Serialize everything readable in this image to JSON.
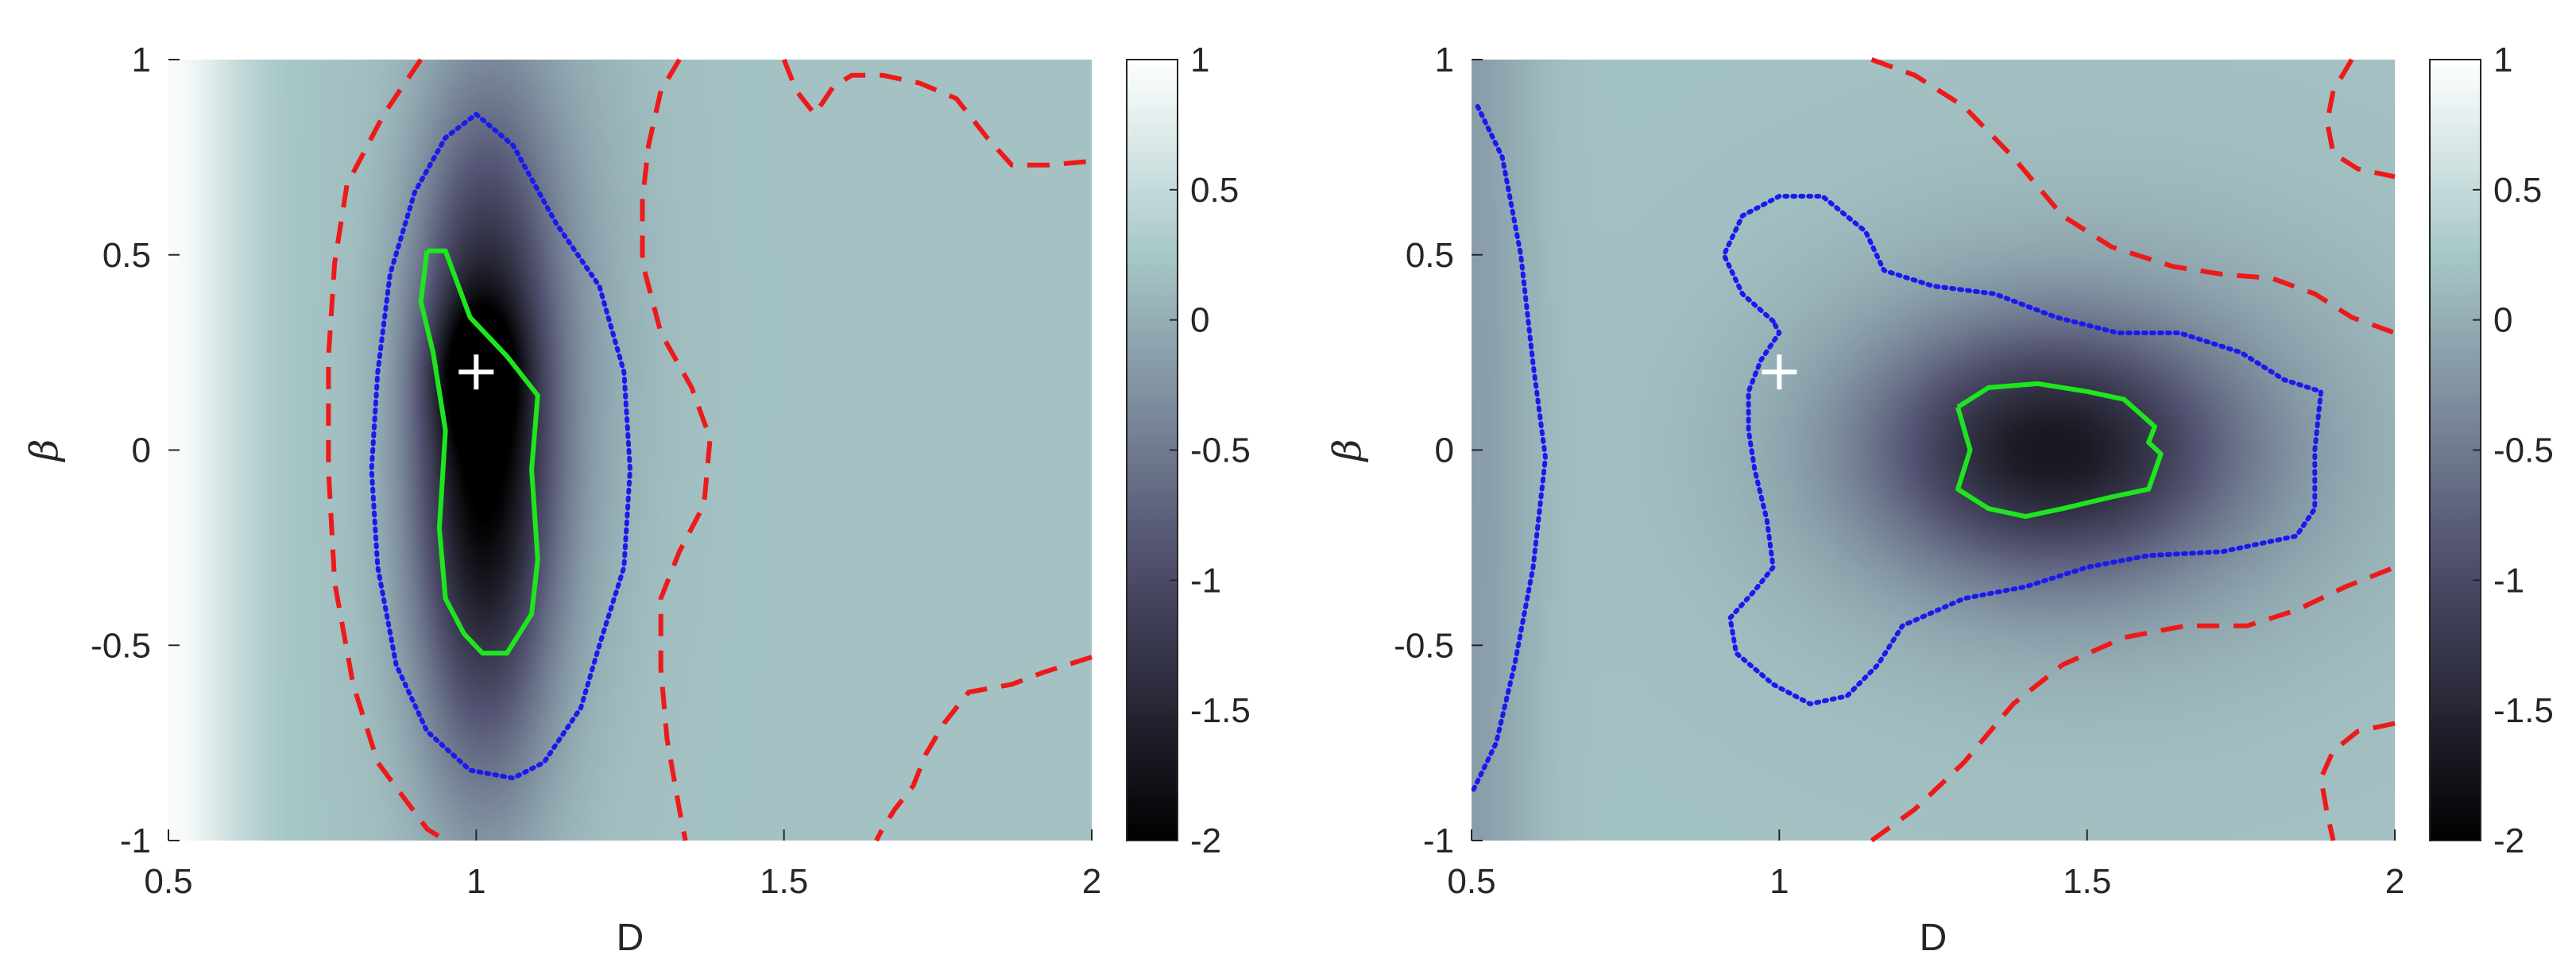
{
  "chart_data": [
    {
      "type": "heatmap",
      "xlabel": "D",
      "ylabel": "β",
      "xlim": [
        0.5,
        2
      ],
      "ylim": [
        -1,
        1
      ],
      "xticks": [
        "0.5",
        "1",
        "1.5",
        "2"
      ],
      "yticks": [
        "-1",
        "-0.5",
        "0",
        "0.5",
        "1"
      ],
      "colorbar": {
        "range": [
          -2,
          1
        ],
        "ticks": [
          "-2",
          "-1.5",
          "-1",
          "-0.5",
          "0",
          "0.5",
          "1"
        ],
        "colormap": "bone"
      },
      "marker": {
        "symbol": "+",
        "x": 1.0,
        "y": 0.2,
        "color": "#ffffff"
      },
      "wells": [
        {
          "x": 1.01,
          "y": 0.0,
          "sx": 0.08,
          "sy": 0.55,
          "depth": -2.1
        },
        {
          "x": 1.0,
          "y": 0.2,
          "sx": 0.05,
          "sy": 0.12,
          "depth": -0.8
        },
        {
          "x": 1.1,
          "y": 0.3,
          "sx": 0.12,
          "sy": 0.7,
          "depth": -0.3
        }
      ],
      "background": {
        "left_value": 0.95,
        "right_value": 0.2,
        "edge_x": 0.62
      },
      "contours": [
        {
          "style": "solid",
          "color": "#1ee61e",
          "points": [
            [
              0.92,
              0.51
            ],
            [
              0.95,
              0.51
            ],
            [
              0.99,
              0.34
            ],
            [
              1.05,
              0.24
            ],
            [
              1.1,
              0.14
            ],
            [
              1.09,
              -0.05
            ],
            [
              1.1,
              -0.28
            ],
            [
              1.09,
              -0.42
            ],
            [
              1.05,
              -0.52
            ],
            [
              1.01,
              -0.52
            ],
            [
              0.98,
              -0.47
            ],
            [
              0.95,
              -0.38
            ],
            [
              0.94,
              -0.2
            ],
            [
              0.95,
              0.05
            ],
            [
              0.93,
              0.25
            ],
            [
              0.91,
              0.38
            ],
            [
              0.92,
              0.51
            ]
          ]
        },
        {
          "style": "dotted",
          "color": "#1a1aee",
          "points": [
            [
              1.0,
              0.86
            ],
            [
              1.06,
              0.78
            ],
            [
              1.13,
              0.58
            ],
            [
              1.2,
              0.42
            ],
            [
              1.24,
              0.2
            ],
            [
              1.25,
              -0.05
            ],
            [
              1.24,
              -0.3
            ],
            [
              1.2,
              -0.5
            ],
            [
              1.17,
              -0.66
            ],
            [
              1.11,
              -0.8
            ],
            [
              1.06,
              -0.84
            ],
            [
              0.99,
              -0.82
            ],
            [
              0.92,
              -0.72
            ],
            [
              0.87,
              -0.55
            ],
            [
              0.84,
              -0.3
            ],
            [
              0.83,
              -0.05
            ],
            [
              0.84,
              0.2
            ],
            [
              0.86,
              0.45
            ],
            [
              0.9,
              0.66
            ],
            [
              0.95,
              0.8
            ],
            [
              1.0,
              0.86
            ]
          ]
        },
        {
          "style": "dashed",
          "color": "#ee1a1a",
          "points": [
            [
              0.91,
              1.0
            ],
            [
              0.85,
              0.86
            ],
            [
              0.79,
              0.68
            ],
            [
              0.77,
              0.48
            ],
            [
              0.76,
              0.24
            ],
            [
              0.76,
              -0.05
            ],
            [
              0.77,
              -0.34
            ],
            [
              0.8,
              -0.6
            ],
            [
              0.84,
              -0.8
            ],
            [
              0.92,
              -0.97
            ],
            [
              0.95,
              -1.0
            ]
          ]
        },
        {
          "style": "dashed",
          "color": "#ee1a1a",
          "points": [
            [
              1.33,
              1.0
            ],
            [
              1.3,
              0.92
            ],
            [
              1.28,
              0.78
            ],
            [
              1.27,
              0.64
            ],
            [
              1.27,
              0.48
            ],
            [
              1.3,
              0.3
            ],
            [
              1.35,
              0.16
            ],
            [
              1.38,
              0.03
            ],
            [
              1.37,
              -0.14
            ],
            [
              1.33,
              -0.26
            ],
            [
              1.3,
              -0.38
            ],
            [
              1.3,
              -0.56
            ],
            [
              1.31,
              -0.74
            ],
            [
              1.33,
              -0.92
            ],
            [
              1.34,
              -1.0
            ]
          ]
        },
        {
          "style": "dashed",
          "color": "#ee1a1a",
          "points": [
            [
              1.5,
              1.0
            ],
            [
              1.52,
              0.92
            ],
            [
              1.55,
              0.86
            ],
            [
              1.58,
              0.93
            ],
            [
              1.61,
              0.96
            ],
            [
              1.66,
              0.96
            ],
            [
              1.72,
              0.94
            ],
            [
              1.78,
              0.9
            ],
            [
              1.83,
              0.8
            ],
            [
              1.87,
              0.73
            ],
            [
              1.93,
              0.73
            ],
            [
              2.0,
              0.74
            ]
          ]
        },
        {
          "style": "dashed",
          "color": "#ee1a1a",
          "points": [
            [
              2.0,
              -0.53
            ],
            [
              1.92,
              -0.57
            ],
            [
              1.87,
              -0.6
            ],
            [
              1.8,
              -0.62
            ],
            [
              1.76,
              -0.7
            ],
            [
              1.73,
              -0.78
            ],
            [
              1.71,
              -0.86
            ],
            [
              1.68,
              -0.92
            ],
            [
              1.66,
              -0.97
            ],
            [
              1.65,
              -1.0
            ]
          ]
        }
      ]
    },
    {
      "type": "heatmap",
      "xlabel": "D",
      "ylabel": "β",
      "xlim": [
        0.5,
        2
      ],
      "ylim": [
        -1,
        1
      ],
      "xticks": [
        "0.5",
        "1",
        "1.5",
        "2"
      ],
      "yticks": [
        "-1",
        "-0.5",
        "0",
        "0.5",
        "1"
      ],
      "colorbar": {
        "range": [
          -2,
          1
        ],
        "ticks": [
          "-2",
          "-1.5",
          "-1",
          "-0.5",
          "0",
          "0.5",
          "1"
        ],
        "colormap": "bone"
      },
      "marker": {
        "symbol": "+",
        "x": 1.0,
        "y": 0.2,
        "color": "#ffffff"
      },
      "wells": [
        {
          "x": 1.44,
          "y": 0.0,
          "sx": 0.2,
          "sy": 0.22,
          "depth": -1.5
        },
        {
          "x": 1.5,
          "y": 0.0,
          "sx": 0.35,
          "sy": 0.4,
          "depth": -0.4
        }
      ],
      "background": {
        "left_value": -0.15,
        "right_value": 0.2,
        "edge_x": 0.6
      },
      "contours": [
        {
          "style": "solid",
          "color": "#1ee61e",
          "points": [
            [
              1.29,
              0.11
            ],
            [
              1.34,
              0.16
            ],
            [
              1.42,
              0.17
            ],
            [
              1.5,
              0.15
            ],
            [
              1.56,
              0.13
            ],
            [
              1.61,
              0.06
            ],
            [
              1.6,
              0.02
            ],
            [
              1.62,
              -0.01
            ],
            [
              1.6,
              -0.1
            ],
            [
              1.54,
              -0.12
            ],
            [
              1.46,
              -0.15
            ],
            [
              1.4,
              -0.17
            ],
            [
              1.34,
              -0.15
            ],
            [
              1.29,
              -0.1
            ],
            [
              1.31,
              0.0
            ],
            [
              1.29,
              0.11
            ]
          ]
        },
        {
          "style": "dotted",
          "color": "#1a1aee",
          "points": [
            [
              0.99,
              0.33
            ],
            [
              0.94,
              0.4
            ],
            [
              0.91,
              0.5
            ],
            [
              0.94,
              0.6
            ],
            [
              1.0,
              0.65
            ],
            [
              1.07,
              0.65
            ],
            [
              1.14,
              0.56
            ],
            [
              1.17,
              0.46
            ],
            [
              1.25,
              0.42
            ],
            [
              1.35,
              0.4
            ],
            [
              1.45,
              0.34
            ],
            [
              1.55,
              0.3
            ],
            [
              1.65,
              0.3
            ],
            [
              1.75,
              0.25
            ],
            [
              1.82,
              0.18
            ],
            [
              1.88,
              0.15
            ],
            [
              1.87,
              0.0
            ],
            [
              1.87,
              -0.15
            ],
            [
              1.84,
              -0.22
            ],
            [
              1.72,
              -0.26
            ],
            [
              1.6,
              -0.27
            ],
            [
              1.5,
              -0.3
            ],
            [
              1.4,
              -0.35
            ],
            [
              1.3,
              -0.38
            ],
            [
              1.2,
              -0.45
            ],
            [
              1.16,
              -0.55
            ],
            [
              1.11,
              -0.63
            ],
            [
              1.05,
              -0.65
            ],
            [
              0.99,
              -0.6
            ],
            [
              0.93,
              -0.52
            ],
            [
              0.92,
              -0.43
            ],
            [
              0.96,
              -0.36
            ],
            [
              0.99,
              -0.3
            ],
            [
              0.98,
              -0.18
            ],
            [
              0.96,
              -0.05
            ],
            [
              0.95,
              0.05
            ],
            [
              0.95,
              0.15
            ],
            [
              0.97,
              0.23
            ],
            [
              1.0,
              0.3
            ],
            [
              0.99,
              0.33
            ]
          ]
        },
        {
          "style": "dotted",
          "color": "#1a1aee",
          "points": [
            [
              0.51,
              0.88
            ],
            [
              0.55,
              0.75
            ],
            [
              0.58,
              0.5
            ],
            [
              0.6,
              0.22
            ],
            [
              0.62,
              -0.02
            ],
            [
              0.6,
              -0.3
            ],
            [
              0.57,
              -0.55
            ],
            [
              0.54,
              -0.75
            ],
            [
              0.5,
              -0.88
            ]
          ]
        },
        {
          "style": "dashed",
          "color": "#ee1a1a",
          "points": [
            [
              1.15,
              1.0
            ],
            [
              1.22,
              0.96
            ],
            [
              1.3,
              0.88
            ],
            [
              1.38,
              0.75
            ],
            [
              1.46,
              0.6
            ],
            [
              1.54,
              0.52
            ],
            [
              1.64,
              0.47
            ],
            [
              1.72,
              0.45
            ],
            [
              1.8,
              0.44
            ],
            [
              1.87,
              0.4
            ],
            [
              1.93,
              0.34
            ],
            [
              2.0,
              0.3
            ]
          ]
        },
        {
          "style": "dashed",
          "color": "#ee1a1a",
          "points": [
            [
              1.15,
              -1.0
            ],
            [
              1.22,
              -0.92
            ],
            [
              1.3,
              -0.8
            ],
            [
              1.38,
              -0.65
            ],
            [
              1.46,
              -0.55
            ],
            [
              1.56,
              -0.48
            ],
            [
              1.66,
              -0.45
            ],
            [
              1.76,
              -0.45
            ],
            [
              1.84,
              -0.41
            ],
            [
              1.92,
              -0.35
            ],
            [
              2.0,
              -0.3
            ]
          ]
        },
        {
          "style": "dashed",
          "color": "#ee1a1a",
          "points": [
            [
              1.93,
              1.0
            ],
            [
              1.9,
              0.92
            ],
            [
              1.89,
              0.84
            ],
            [
              1.9,
              0.76
            ],
            [
              1.94,
              0.72
            ],
            [
              2.0,
              0.7
            ]
          ]
        },
        {
          "style": "dashed",
          "color": "#ee1a1a",
          "points": [
            [
              2.0,
              -0.7
            ],
            [
              1.94,
              -0.72
            ],
            [
              1.9,
              -0.77
            ],
            [
              1.88,
              -0.84
            ],
            [
              1.89,
              -0.93
            ],
            [
              1.9,
              -1.0
            ]
          ]
        }
      ]
    }
  ]
}
